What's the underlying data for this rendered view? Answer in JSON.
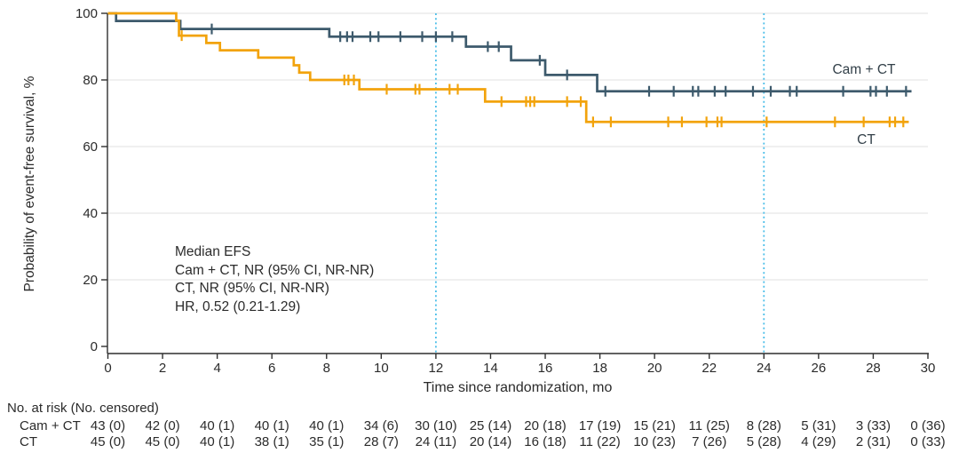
{
  "figure": {
    "y_axis_label": "Probability of event-free survival, %",
    "x_axis_label": "Time since randomization, mo",
    "annotation": {
      "lines": [
        "Median EFS",
        "Cam + CT, NR (95% CI, NR-NR)",
        "CT, NR (95% CI, NR-NR)",
        "HR, 0.52 (0.21-1.29)"
      ]
    }
  },
  "chart_data": {
    "type": "line",
    "subtype": "kaplan-meier-step",
    "title": "",
    "xlabel": "Time since randomization, mo",
    "ylabel": "Probability of event-free survival, %",
    "xlim": [
      0,
      30
    ],
    "ylim": [
      0,
      100
    ],
    "xticks": [
      0,
      2,
      4,
      6,
      8,
      10,
      12,
      14,
      16,
      18,
      20,
      22,
      24,
      26,
      28,
      30
    ],
    "yticks": [
      0,
      20,
      40,
      60,
      80,
      100
    ],
    "grid": "horizontal-light",
    "reference_lines_x": [
      12,
      24
    ],
    "series": [
      {
        "name": "Cam + CT",
        "color": "#3D5A6C",
        "step_x": [
          0,
          0.3,
          2.65,
          8.1,
          13.1,
          14.75,
          16.0,
          17.9
        ],
        "step_y": [
          100,
          97.7,
          95.3,
          93.0,
          90.0,
          85.9,
          81.5,
          76.6
        ],
        "end_x": 29.4,
        "censor_x": [
          3.8,
          8.5,
          8.75,
          8.95,
          9.6,
          9.9,
          10.7,
          11.5,
          12.0,
          12.6,
          13.9,
          14.3,
          15.8,
          16.8,
          18.2,
          19.8,
          20.7,
          21.4,
          21.6,
          22.2,
          22.6,
          23.6,
          24.25,
          24.95,
          25.2,
          26.9,
          27.9,
          28.1,
          28.5,
          29.2
        ]
      },
      {
        "name": "CT",
        "color": "#F2A30C",
        "step_x": [
          0,
          2.5,
          2.6,
          3.6,
          4.1,
          5.5,
          6.8,
          7.0,
          7.4,
          9.2,
          13.8,
          17.5
        ],
        "step_y": [
          100,
          97.8,
          93.3,
          91.1,
          88.9,
          86.7,
          84.4,
          82.2,
          80.0,
          77.2,
          73.5,
          67.4
        ],
        "end_x": 29.3,
        "censor_x": [
          2.7,
          8.65,
          8.8,
          9.0,
          10.2,
          11.25,
          11.4,
          12.5,
          12.8,
          14.4,
          15.3,
          15.45,
          15.6,
          16.8,
          17.3,
          17.75,
          18.4,
          20.5,
          21.0,
          21.9,
          22.3,
          22.45,
          24.1,
          26.6,
          27.65,
          28.6,
          28.8,
          29.1
        ]
      }
    ]
  },
  "risk_table": {
    "header": "No. at risk (No. censored)",
    "time_points": [
      0,
      2,
      4,
      6,
      8,
      10,
      12,
      14,
      16,
      18,
      20,
      22,
      24,
      26,
      28,
      30
    ],
    "rows": [
      {
        "label": "Cam + CT",
        "values": [
          "43 (0)",
          "42 (0)",
          "40 (1)",
          "40 (1)",
          "40 (1)",
          "34 (6)",
          "30 (10)",
          "25 (14)",
          "20 (18)",
          "17 (19)",
          "15 (21)",
          "11 (25)",
          "8 (28)",
          "5 (31)",
          "3 (33)",
          "0 (36)"
        ]
      },
      {
        "label": "CT",
        "values": [
          "45 (0)",
          "45 (0)",
          "40 (1)",
          "38 (1)",
          "35 (1)",
          "28 (7)",
          "24 (11)",
          "20 (14)",
          "16 (18)",
          "11 (22)",
          "10 (23)",
          "7 (26)",
          "5 (28)",
          "4 (29)",
          "2 (31)",
          "0 (33)"
        ]
      }
    ]
  },
  "colors": {
    "cam_ct_line": "#3D5A6C",
    "ct_line": "#F2A30C",
    "reference_line": "#4CBFE9",
    "gridline": "#EBEBEB",
    "axis": "#2F2F2F",
    "text": "#2B2B2B"
  }
}
